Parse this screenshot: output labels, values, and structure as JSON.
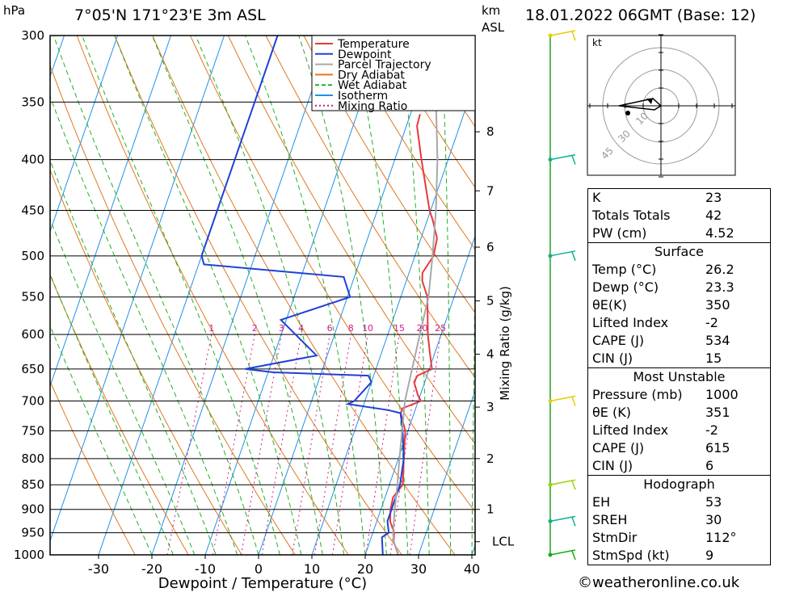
{
  "header": {
    "pressure_unit": "hPa",
    "location": "7°05'N  171°23'E  3m  ASL",
    "km_label": "km",
    "asl_label": "ASL",
    "datetime": "18.01.2022  06GMT  (Base: 12)"
  },
  "chart_data": {
    "type": "line",
    "xlabel": "Dewpoint / Temperature (°C)",
    "ylabel": "",
    "right_axis_label": "Mixing Ratio (g/kg)",
    "x_ticks": [
      -30,
      -20,
      -10,
      0,
      10,
      20,
      30,
      40
    ],
    "pressure_ticks": [
      300,
      350,
      400,
      450,
      500,
      550,
      600,
      650,
      700,
      750,
      800,
      850,
      900,
      950,
      1000
    ],
    "km_ticks": [
      {
        "km": "1",
        "p": 900
      },
      {
        "km": "2",
        "p": 800
      },
      {
        "km": "3",
        "p": 710
      },
      {
        "km": "4",
        "p": 628
      },
      {
        "km": "5",
        "p": 555
      },
      {
        "km": "6",
        "p": 490
      },
      {
        "km": "7",
        "p": 430
      },
      {
        "km": "8",
        "p": 375
      }
    ],
    "lcl_label": "LCL",
    "lcl_pressure": 970,
    "mixing_ratio_labels": [
      "1",
      "2",
      "3",
      "4",
      "6",
      "8",
      "10",
      "15",
      "20",
      "25"
    ],
    "legend": [
      "Temperature",
      "Dewpoint",
      "Parcel Trajectory",
      "Dry Adiabat",
      "Wet Adiabat",
      "Isotherm",
      "Mixing Ratio"
    ],
    "colors": {
      "temperature": "#e8383c",
      "dewpoint": "#2040d8",
      "parcel": "#a8a8a8",
      "dry_adiabat": "#e07820",
      "wet_adiabat": "#22b022",
      "isotherm": "#2090e8",
      "mixing_ratio": "#d0188a"
    },
    "series": [
      {
        "name": "Temperature",
        "points": [
          [
            1000,
            26.2
          ],
          [
            970,
            24.5
          ],
          [
            950,
            24
          ],
          [
            925,
            22.5
          ],
          [
            900,
            21.8
          ],
          [
            875,
            21.5
          ],
          [
            850,
            22.5
          ],
          [
            825,
            21.8
          ],
          [
            800,
            21
          ],
          [
            750,
            19.5
          ],
          [
            720,
            17.5
          ],
          [
            712,
            17.5
          ],
          [
            700,
            20.5
          ],
          [
            690,
            19.5
          ],
          [
            670,
            18
          ],
          [
            660,
            18.2
          ],
          [
            650,
            20.5
          ],
          [
            625,
            19
          ],
          [
            600,
            17.5
          ],
          [
            550,
            15
          ],
          [
            530,
            13
          ],
          [
            520,
            12.5
          ],
          [
            500,
            13.5
          ],
          [
            480,
            13
          ],
          [
            460,
            11
          ],
          [
            450,
            9.8
          ],
          [
            400,
            5
          ],
          [
            370,
            2
          ],
          [
            360,
            1.8
          ]
        ]
      },
      {
        "name": "Dewpoint",
        "points": [
          [
            1000,
            23.3
          ],
          [
            960,
            22
          ],
          [
            950,
            23
          ],
          [
            925,
            22
          ],
          [
            900,
            22
          ],
          [
            875,
            22
          ],
          [
            850,
            22
          ],
          [
            800,
            21
          ],
          [
            750,
            19
          ],
          [
            720,
            17.5
          ],
          [
            715,
            15
          ],
          [
            705,
            7
          ],
          [
            700,
            8
          ],
          [
            670,
            10
          ],
          [
            660,
            9
          ],
          [
            655,
            -9
          ],
          [
            650,
            -14.5
          ],
          [
            630,
            -2
          ],
          [
            580,
            -11
          ],
          [
            550,
            0.5
          ],
          [
            525,
            -2
          ],
          [
            510,
            -29
          ],
          [
            500,
            -30
          ],
          [
            450,
            -30
          ],
          [
            400,
            -30
          ],
          [
            350,
            -30
          ],
          [
            320,
            -30
          ],
          [
            300,
            -30
          ]
        ]
      },
      {
        "name": "Parcel Trajectory",
        "points": [
          [
            1000,
            26.2
          ],
          [
            970,
            24.5
          ],
          [
            950,
            23.8
          ],
          [
            900,
            22.6
          ],
          [
            850,
            21.5
          ],
          [
            800,
            20.2
          ],
          [
            700,
            17.5
          ],
          [
            600,
            16
          ],
          [
            550,
            15.2
          ],
          [
            500,
            13.3
          ],
          [
            450,
            11
          ],
          [
            400,
            8
          ],
          [
            350,
            4
          ]
        ]
      }
    ]
  },
  "hodograph": {
    "unit_label": "kt",
    "ring_labels": [
      "10",
      "30",
      "45"
    ]
  },
  "indices": [
    {
      "label": "K",
      "value": "23"
    },
    {
      "label": "Totals Totals",
      "value": "42"
    },
    {
      "label": "PW (cm)",
      "value": "4.52"
    }
  ],
  "surface": {
    "title": "Surface",
    "rows": [
      {
        "label": "Temp (°C)",
        "value": "26.2"
      },
      {
        "label": "Dewp (°C)",
        "value": "23.3"
      },
      {
        "label": "θE(K)",
        "value": "350"
      },
      {
        "label": "Lifted Index",
        "value": "-2"
      },
      {
        "label": "CAPE (J)",
        "value": "534"
      },
      {
        "label": "CIN (J)",
        "value": "15"
      }
    ]
  },
  "most_unstable": {
    "title": "Most Unstable",
    "rows": [
      {
        "label": "Pressure (mb)",
        "value": "1000"
      },
      {
        "label": "θE (K)",
        "value": "351"
      },
      {
        "label": "Lifted Index",
        "value": "-2"
      },
      {
        "label": "CAPE (J)",
        "value": "615"
      },
      {
        "label": "CIN (J)",
        "value": "6"
      }
    ]
  },
  "hodograph_table": {
    "title": "Hodograph",
    "rows": [
      {
        "label": "EH",
        "value": "53"
      },
      {
        "label": "SREH",
        "value": "30"
      },
      {
        "label": "StmDir",
        "value": "112°"
      },
      {
        "label": "StmSpd (kt)",
        "value": "9"
      }
    ]
  },
  "footer": "©weatheronline.co.uk"
}
